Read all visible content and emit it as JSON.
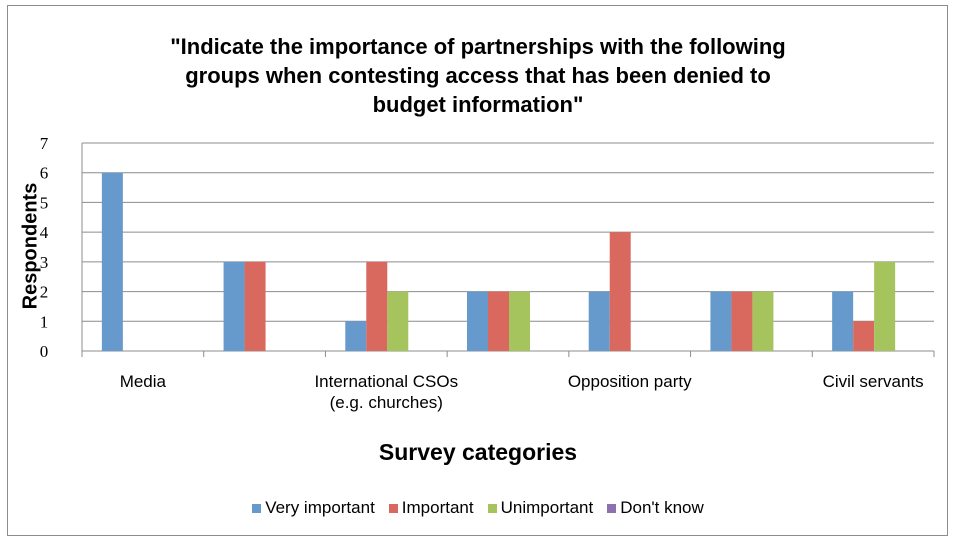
{
  "chart_data": {
    "type": "bar",
    "title_lines": [
      "\"Indicate the importance of partnerships with the following",
      "groups when contesting access that has been denied to",
      "budget information\""
    ],
    "xlabel": "Survey categories",
    "ylabel": "Respondents",
    "ylim": [
      0,
      7
    ],
    "yticks": [
      0,
      1,
      2,
      3,
      4,
      5,
      6,
      7
    ],
    "grid": true,
    "legend_position": "bottom",
    "categories": [
      "Media",
      "",
      "International CSOs (e.g. churches)",
      "",
      "Opposition party",
      "",
      "Civil servants"
    ],
    "category_label_lines": [
      [
        "Media"
      ],
      [],
      [
        "International CSOs",
        "(e.g. churches)"
      ],
      [],
      [
        "Opposition party"
      ],
      [],
      [
        "Civil servants"
      ]
    ],
    "series": [
      {
        "name": "Very important",
        "color": "#6699cc",
        "values": [
          6,
          3,
          1,
          2,
          2,
          2,
          2
        ]
      },
      {
        "name": "Important",
        "color": "#d9695f",
        "values": [
          0,
          3,
          3,
          2,
          4,
          2,
          1
        ]
      },
      {
        "name": "Unimportant",
        "color": "#a6c45e",
        "values": [
          0,
          0,
          2,
          2,
          0,
          2,
          3
        ]
      },
      {
        "name": "Don't know",
        "color": "#8e6fb0",
        "values": [
          0,
          0,
          0,
          0,
          0,
          0,
          0
        ]
      }
    ]
  }
}
